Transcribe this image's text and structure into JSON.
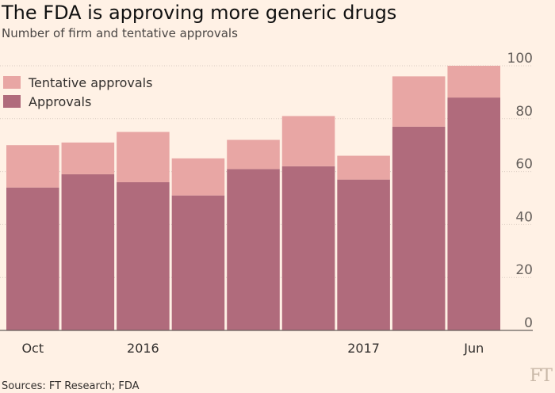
{
  "header": {
    "title": "The FDA is approving more generic drugs",
    "subtitle": "Number of firm and tentative approvals"
  },
  "footer": {
    "source": "Sources: FT Research; FDA",
    "logo_text": "FT"
  },
  "colors": {
    "background": "#fff1e5",
    "approvals": "#b06b7c",
    "tentative": "#e8a6a4",
    "grid": "#d9ccc1",
    "axis": "#66605c"
  },
  "chart_data": {
    "type": "bar",
    "stacked": true,
    "categories": [
      "Oct",
      "",
      "2016",
      "",
      "",
      "",
      "2017",
      "",
      "Jun"
    ],
    "x_tick_labels": [
      "Oct",
      "2016",
      "2017",
      "Jun"
    ],
    "series": [
      {
        "name": "Approvals",
        "values": [
          54,
          59,
          56,
          51,
          61,
          62,
          57,
          77,
          88
        ]
      },
      {
        "name": "Tentative approvals",
        "values": [
          16,
          12,
          19,
          14,
          11,
          19,
          9,
          19,
          12
        ]
      }
    ],
    "totals": [
      70,
      71,
      75,
      65,
      72,
      81,
      66,
      96,
      100
    ],
    "ylim": [
      0,
      100
    ],
    "yticks": [
      0,
      20,
      40,
      60,
      80,
      100
    ],
    "y_axis_side": "right",
    "grid": true,
    "legend": [
      "Tentative approvals",
      "Approvals"
    ],
    "legend_position": "top-left"
  }
}
